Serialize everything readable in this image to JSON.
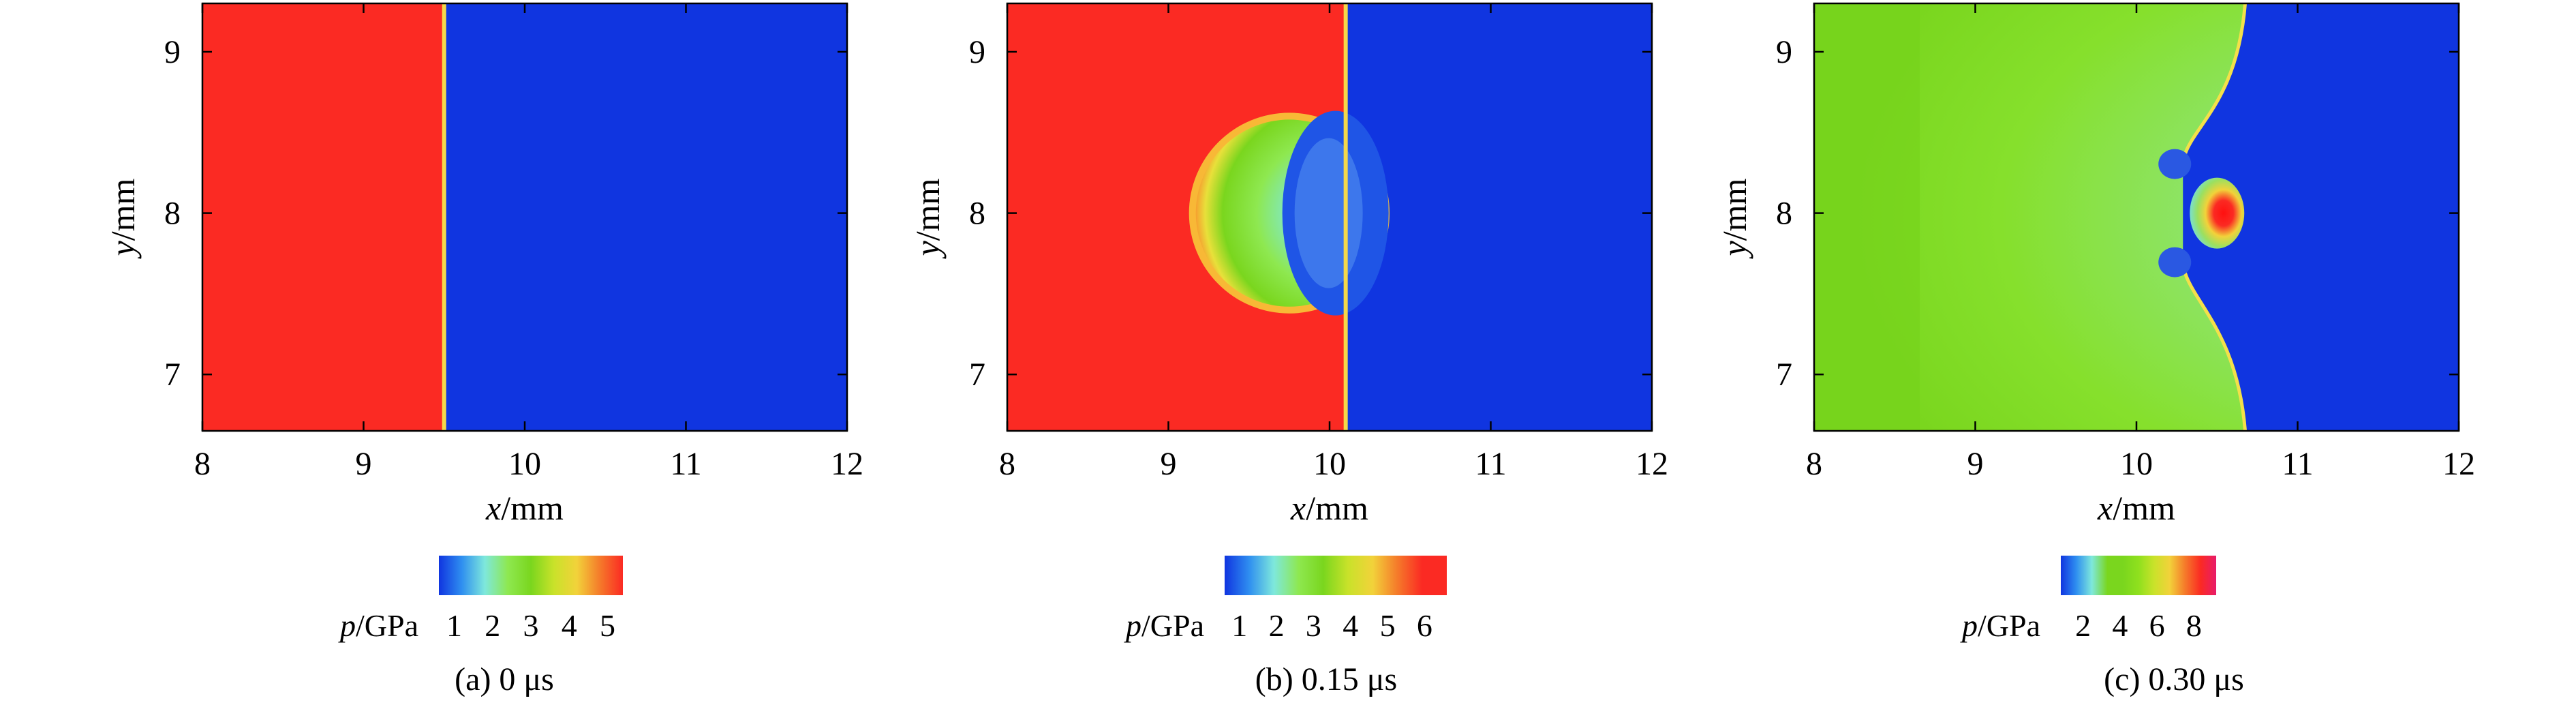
{
  "colors": {
    "low": "#1035e0",
    "high": "#fb2a23",
    "mid_green": "#78e41a",
    "shock_yellow": "#f5d84a",
    "cyan": "#7ee8dc"
  },
  "chart_data": [
    {
      "type": "heatmap",
      "panel": "a",
      "caption": "(a) 0 μs",
      "xlabel": "x/mm",
      "ylabel": "y/mm",
      "xlim": [
        8,
        12
      ],
      "ylim": [
        6.65,
        9.3
      ],
      "xticks": [
        8,
        9,
        10,
        11,
        12
      ],
      "yticks": [
        7,
        8,
        9
      ],
      "field": {
        "background_left_value": 5.2,
        "background_right_value": 1.0,
        "interface_x": 9.5
      },
      "colorbar": {
        "label": "p/GPa",
        "ticks": [
          1,
          2,
          3,
          4,
          5
        ],
        "range": [
          0.6,
          5.4
        ],
        "palette": [
          "#1035e0",
          "#2f8ff0",
          "#7ee8dc",
          "#8ee850",
          "#7ad61e",
          "#c9e22a",
          "#f2d23a",
          "#f57a2a",
          "#fb2a23"
        ]
      }
    },
    {
      "type": "heatmap",
      "panel": "b",
      "caption": "(b) 0.15 μs",
      "xlabel": "x/mm",
      "ylabel": "y/mm",
      "xlim": [
        8,
        12
      ],
      "ylim": [
        6.65,
        9.3
      ],
      "xticks": [
        8,
        9,
        10,
        11,
        12
      ],
      "yticks": [
        7,
        8,
        9
      ],
      "field": {
        "background_left_value": 6.2,
        "background_right_value": 1.0,
        "interface_x": 10.1,
        "bubble": {
          "center_x": 9.75,
          "center_y": 8.0,
          "radius_mm": 0.58
        }
      },
      "colorbar": {
        "label": "p/GPa",
        "ticks": [
          1,
          2,
          3,
          4,
          5,
          6
        ],
        "range": [
          0.6,
          6.6
        ],
        "palette": [
          "#1035e0",
          "#2f8ff0",
          "#7ee8dc",
          "#8ee850",
          "#7ad61e",
          "#c9e22a",
          "#f2d23a",
          "#f57a2a",
          "#fb2a23",
          "#fb2a23"
        ]
      }
    },
    {
      "type": "heatmap",
      "panel": "c",
      "caption": "(c) 0.30 μs",
      "xlabel": "x/mm",
      "ylabel": "y/mm",
      "xlim": [
        8,
        12
      ],
      "ylim": [
        6.65,
        9.3
      ],
      "xticks": [
        8,
        9,
        10,
        11,
        12
      ],
      "yticks": [
        7,
        8,
        9
      ],
      "field": {
        "background_left_value": 4.0,
        "background_right_value": 1.0,
        "shock_x": 10.7,
        "hotspot": {
          "center_x": 10.5,
          "center_y": 8.0,
          "peak_value": 8.6
        }
      },
      "colorbar": {
        "label": "p/GPa",
        "ticks": [
          2,
          4,
          6,
          8
        ],
        "range": [
          0.8,
          9.2
        ],
        "palette": [
          "#1035e0",
          "#2f8ff0",
          "#7ee8dc",
          "#7ad61e",
          "#7ad61e",
          "#8fe01e",
          "#c9e22a",
          "#f2d23a",
          "#f57a2a",
          "#fb2a23",
          "#e81c6a"
        ]
      }
    }
  ]
}
